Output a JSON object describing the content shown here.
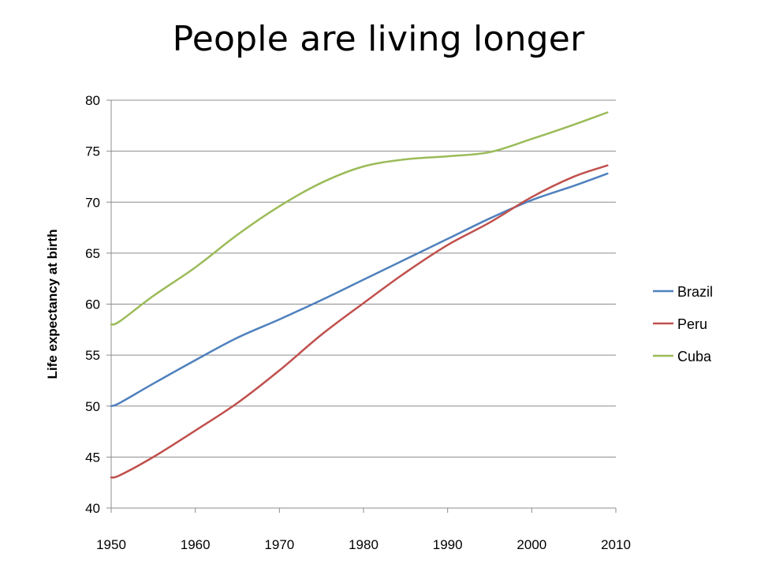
{
  "slide": {
    "title": "People are living longer"
  },
  "chart_data": {
    "type": "line",
    "title": "People are living longer",
    "xlabel": "",
    "ylabel": "Life expectancy at birth",
    "xlim": [
      1950,
      2010
    ],
    "ylim": [
      40,
      80
    ],
    "xticks": [
      1950,
      1960,
      1970,
      1980,
      1990,
      2000,
      2010
    ],
    "yticks": [
      40,
      45,
      50,
      55,
      60,
      65,
      70,
      75,
      80
    ],
    "grid": "horizontal",
    "legend_position": "right",
    "x": [
      1950,
      1951,
      1955,
      1960,
      1965,
      1970,
      1975,
      1980,
      1985,
      1990,
      1995,
      2000,
      2005,
      2009
    ],
    "series": [
      {
        "name": "Brazil",
        "color": "#4f81bd",
        "values": [
          50.0,
          50.3,
          52.2,
          54.5,
          56.7,
          58.5,
          60.4,
          62.4,
          64.4,
          66.4,
          68.4,
          70.2,
          71.6,
          72.8
        ]
      },
      {
        "name": "Peru",
        "color": "#c0504d",
        "values": [
          43.0,
          43.2,
          45.0,
          47.6,
          50.3,
          53.5,
          57.0,
          60.1,
          63.1,
          65.8,
          68.0,
          70.5,
          72.5,
          73.6
        ]
      },
      {
        "name": "Cuba",
        "color": "#9bbb59",
        "values": [
          58.0,
          58.3,
          60.8,
          63.6,
          66.8,
          69.6,
          71.9,
          73.5,
          74.2,
          74.5,
          74.9,
          76.2,
          77.6,
          78.8
        ]
      }
    ]
  }
}
